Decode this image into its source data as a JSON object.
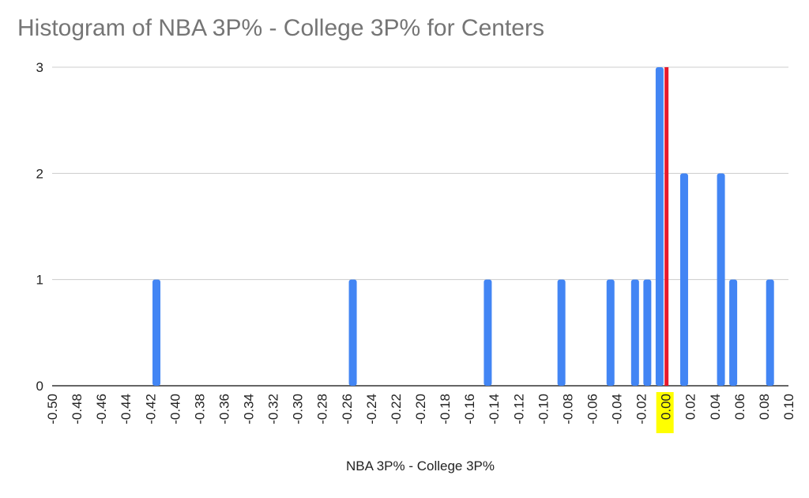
{
  "chart_data": {
    "type": "bar",
    "title": "Histogram of NBA 3P% - College 3P% for Centers",
    "xlabel": "NBA 3P% - College 3P%",
    "ylabel": "",
    "xlim": [
      -0.5,
      0.1
    ],
    "ylim": [
      0,
      3
    ],
    "yticks": [
      0,
      1,
      2,
      3
    ],
    "xticks": [
      "-0.50",
      "-0.48",
      "-0.46",
      "-0.44",
      "-0.42",
      "-0.40",
      "-0.38",
      "-0.36",
      "-0.34",
      "-0.32",
      "-0.30",
      "-0.28",
      "-0.26",
      "-0.24",
      "-0.22",
      "-0.20",
      "-0.18",
      "-0.16",
      "-0.14",
      "-0.12",
      "-0.10",
      "-0.08",
      "-0.06",
      "-0.04",
      "-0.02",
      "0.00",
      "0.02",
      "0.04",
      "0.06",
      "0.08",
      "0.10"
    ],
    "highlighted_tick": "0.00",
    "grid": true,
    "bin_width": 0.01,
    "bins": [
      {
        "start": -0.42,
        "count": 1
      },
      {
        "start": -0.26,
        "count": 1
      },
      {
        "start": -0.15,
        "count": 1
      },
      {
        "start": -0.09,
        "count": 1
      },
      {
        "start": -0.05,
        "count": 1
      },
      {
        "start": -0.03,
        "count": 1
      },
      {
        "start": -0.02,
        "count": 1
      },
      {
        "start": -0.01,
        "count": 3
      },
      {
        "start": 0.01,
        "count": 2
      },
      {
        "start": 0.04,
        "count": 2
      },
      {
        "start": 0.05,
        "count": 1
      },
      {
        "start": 0.08,
        "count": 1
      }
    ],
    "reference_line": {
      "x": 0,
      "color": "#e8192c"
    },
    "bar_color": "#4285f4",
    "highlight_color": "#ffff00"
  }
}
